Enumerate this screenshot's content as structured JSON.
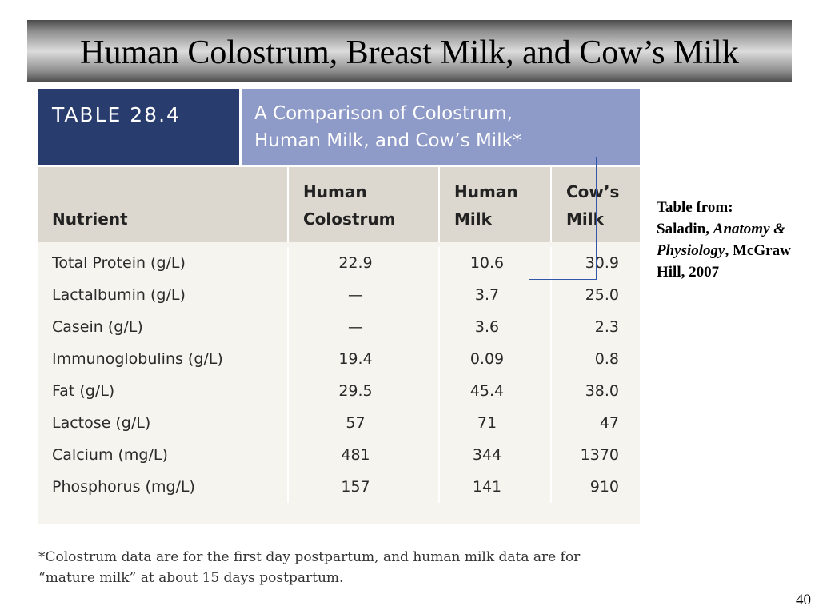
{
  "slide": {
    "title": "Human Colostrum, Breast Milk, and Cow’s Milk",
    "page_number": "40"
  },
  "table": {
    "number": "TABLE 28.4",
    "caption_line1": "A Comparison of Colostrum,",
    "caption_line2": "Human Milk, and Cow’s Milk*",
    "columns": [
      {
        "line1": "",
        "line2": "Nutrient"
      },
      {
        "line1": "Human",
        "line2": "Colostrum"
      },
      {
        "line1": "Human",
        "line2": "Milk"
      },
      {
        "line1": "Cow’s",
        "line2": "Milk"
      }
    ],
    "rows": [
      {
        "nutrient": "Total Protein (g/L)",
        "colostrum": "22.9",
        "human_milk": "10.6",
        "cows_milk": "30.9"
      },
      {
        "nutrient": "Lactalbumin (g/L)",
        "colostrum": "—",
        "human_milk": "3.7",
        "cows_milk": "25.0"
      },
      {
        "nutrient": "Casein (g/L)",
        "colostrum": "—",
        "human_milk": "3.6",
        "cows_milk": "2.3"
      },
      {
        "nutrient": "Immunoglobulins (g/L)",
        "colostrum": "19.4",
        "human_milk": "0.09",
        "cows_milk": "0.8"
      },
      {
        "nutrient": "Fat (g/L)",
        "colostrum": "29.5",
        "human_milk": "45.4",
        "cows_milk": "38.0"
      },
      {
        "nutrient": "Lactose (g/L)",
        "colostrum": "57",
        "human_milk": "71",
        "cows_milk": "47"
      },
      {
        "nutrient": "Calcium (mg/L)",
        "colostrum": "481",
        "human_milk": "344",
        "cows_milk": "1370"
      },
      {
        "nutrient": "Phosphorus (mg/L)",
        "colostrum": "157",
        "human_milk": "141",
        "cows_milk": "910"
      }
    ],
    "footnote_line1": "*Colostrum data are for the first day postpartum, and human milk data are for",
    "footnote_line2": "“mature milk” at about 15 days postpartum."
  },
  "source": {
    "line1": "Table from:",
    "author": "Saladin,",
    "book_italic": "Anatomy & Physiology",
    "publisher": ", McGraw Hill, 2007"
  },
  "colors": {
    "table_number_bg": "#283c6e",
    "caption_bg": "#8e9ac7",
    "column_header_bg": "#dcd8cf",
    "body_bg": "#f6f4ee",
    "highlight_border": "#3355aa"
  }
}
